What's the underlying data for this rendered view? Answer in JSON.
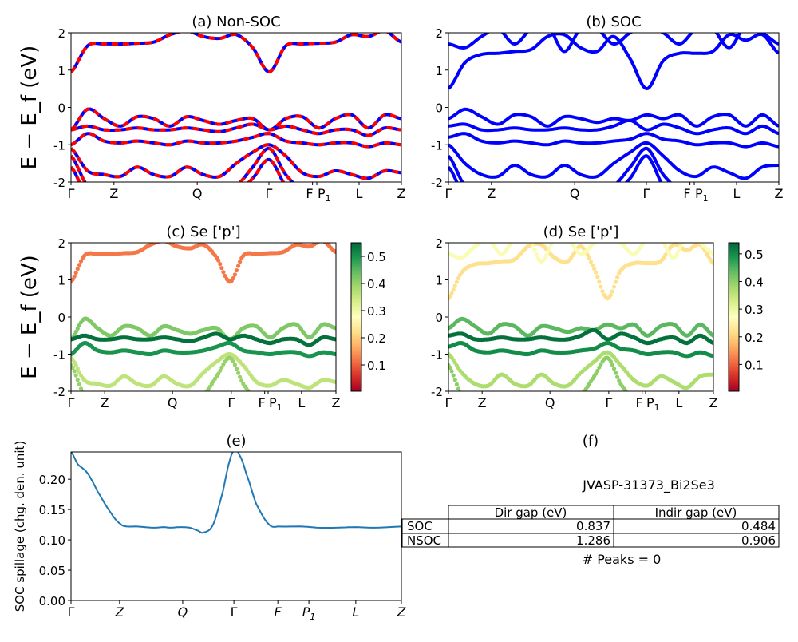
{
  "chart_data": [
    {
      "id": "a",
      "type": "line",
      "title": "(a) Non-SOC",
      "ylabel": "E − E_f (eV)",
      "ylim": [
        -2,
        2
      ],
      "yticks": [
        -2,
        -1,
        0,
        1,
        2
      ],
      "xlim": [
        0,
        1
      ],
      "xticks": [
        {
          "k": 0,
          "label": "Γ"
        },
        {
          "k": 0.13,
          "label": "Z"
        },
        {
          "k": 0.382,
          "label": "Q"
        },
        {
          "k": 0.599,
          "label": "Γ"
        },
        {
          "k": 0.731,
          "label": "F"
        },
        {
          "k": 0.744,
          "label": "P1"
        },
        {
          "k": 0.872,
          "label": "L"
        },
        {
          "k": 1,
          "label": "Z"
        }
      ],
      "colors": {
        "solid": "#0000ff",
        "dashed": "#ff0000"
      },
      "k": [
        0,
        0.05,
        0.1,
        0.15,
        0.2,
        0.25,
        0.3,
        0.35,
        0.4,
        0.45,
        0.5,
        0.55,
        0.6,
        0.65,
        0.7,
        0.75,
        0.8,
        0.85,
        0.9,
        0.95,
        1
      ],
      "bands": [
        [
          0.95,
          1.65,
          1.7,
          1.7,
          1.72,
          1.75,
          1.95,
          2.05,
          1.9,
          1.85,
          1.95,
          1.6,
          0.95,
          1.65,
          1.7,
          1.72,
          1.75,
          1.95,
          1.9,
          2.05,
          1.75
        ],
        [
          -0.6,
          -0.05,
          -0.3,
          -0.5,
          -0.25,
          -0.3,
          -0.5,
          -0.25,
          -0.35,
          -0.45,
          -0.35,
          -0.3,
          -0.6,
          -0.3,
          -0.25,
          -0.55,
          -0.3,
          -0.2,
          -0.55,
          -0.2,
          -0.3
        ],
        [
          -0.6,
          -0.5,
          -0.6,
          -0.6,
          -0.55,
          -0.6,
          -0.6,
          -0.55,
          -0.6,
          -0.65,
          -0.55,
          -0.45,
          -0.6,
          -0.5,
          -0.6,
          -0.7,
          -0.6,
          -0.6,
          -0.75,
          -0.55,
          -0.6
        ],
        [
          -1.0,
          -0.7,
          -0.9,
          -0.95,
          -0.9,
          -0.95,
          -1.0,
          -0.9,
          -0.95,
          -0.95,
          -0.9,
          -0.8,
          -0.7,
          -0.9,
          -0.95,
          -1.0,
          -0.95,
          -0.95,
          -1.05,
          -0.95,
          -1.0
        ],
        [
          -1.1,
          -1.7,
          -1.8,
          -1.85,
          -1.6,
          -1.8,
          -1.85,
          -1.6,
          -1.8,
          -1.85,
          -1.5,
          -1.2,
          -1.0,
          -1.3,
          -1.75,
          -1.85,
          -1.7,
          -1.8,
          -1.9,
          -1.7,
          -1.75
        ],
        [
          -1.3,
          -2.1,
          -2.2,
          -2.2,
          -2.2,
          -2.2,
          -2.2,
          -2.2,
          -2.2,
          -2.2,
          -2.1,
          -1.6,
          -1.1,
          -1.8,
          -2.2,
          -2.2,
          -2.2,
          -2.2,
          -2.2,
          -2.2,
          -2.2
        ],
        [
          -1.6,
          -2.4,
          -2.4,
          -2.4,
          -2.4,
          -2.4,
          -2.4,
          -2.4,
          -2.4,
          -2.4,
          -2.3,
          -1.9,
          -1.4,
          -2.1,
          -2.4,
          -2.4,
          -2.4,
          -2.4,
          -2.4,
          -2.4,
          -2.4
        ]
      ]
    },
    {
      "id": "b",
      "type": "line",
      "title": "(b) SOC",
      "ylim": [
        -2,
        2
      ],
      "yticks": [
        -2,
        -1,
        0,
        1,
        2
      ],
      "xlim": [
        0,
        1
      ],
      "xticks": [
        {
          "k": 0,
          "label": "Γ"
        },
        {
          "k": 0.13,
          "label": "Z"
        },
        {
          "k": 0.382,
          "label": "Q"
        },
        {
          "k": 0.599,
          "label": "Γ"
        },
        {
          "k": 0.731,
          "label": "F"
        },
        {
          "k": 0.744,
          "label": "P1"
        },
        {
          "k": 0.872,
          "label": "L"
        },
        {
          "k": 1,
          "label": "Z"
        }
      ],
      "colors": {
        "solid": "#0000ff"
      },
      "k": [
        0,
        0.05,
        0.1,
        0.15,
        0.2,
        0.25,
        0.3,
        0.35,
        0.4,
        0.45,
        0.5,
        0.55,
        0.6,
        0.65,
        0.7,
        0.75,
        0.8,
        0.85,
        0.9,
        0.95,
        1
      ],
      "bands": [
        [
          0.5,
          1.2,
          1.42,
          1.45,
          1.5,
          1.55,
          1.9,
          1.95,
          1.6,
          1.5,
          1.9,
          1.3,
          0.5,
          1.25,
          1.45,
          1.45,
          1.5,
          1.95,
          1.8,
          1.95,
          1.45
        ],
        [
          1.7,
          1.6,
          1.9,
          2.1,
          1.7,
          2.1,
          2.2,
          1.5,
          2.1,
          2.1,
          1.7,
          2.0,
          2.2,
          2.0,
          1.7,
          2.1,
          2.1,
          1.6,
          2.2,
          2.0,
          1.7
        ],
        [
          -0.3,
          -0.05,
          -0.25,
          -0.45,
          -0.2,
          -0.25,
          -0.5,
          -0.25,
          -0.3,
          -0.4,
          -0.3,
          -0.35,
          -0.2,
          -0.3,
          -0.2,
          -0.5,
          -0.25,
          -0.2,
          -0.5,
          -0.2,
          -0.5
        ],
        [
          -0.5,
          -0.45,
          -0.6,
          -0.6,
          -0.55,
          -0.6,
          -0.6,
          -0.55,
          -0.6,
          -0.6,
          -0.5,
          -0.35,
          -0.6,
          -0.45,
          -0.55,
          -0.7,
          -0.6,
          -0.55,
          -0.7,
          -0.5,
          -0.7
        ],
        [
          -0.8,
          -0.7,
          -0.9,
          -0.95,
          -0.9,
          -0.95,
          -1.0,
          -0.9,
          -0.95,
          -0.95,
          -0.9,
          -0.85,
          -0.7,
          -0.85,
          -0.9,
          -1.0,
          -0.95,
          -0.95,
          -1.05,
          -0.95,
          -1.05
        ],
        [
          -1.0,
          -1.5,
          -1.8,
          -1.85,
          -1.55,
          -1.8,
          -1.85,
          -1.55,
          -1.8,
          -1.85,
          -1.5,
          -1.2,
          -0.95,
          -1.3,
          -1.7,
          -1.85,
          -1.6,
          -1.75,
          -1.9,
          -1.6,
          -1.55
        ],
        [
          -1.3,
          -2.1,
          -2.2,
          -2.2,
          -2.2,
          -2.2,
          -2.2,
          -2.2,
          -2.2,
          -2.2,
          -2.1,
          -1.6,
          -1.1,
          -1.8,
          -2.2,
          -2.2,
          -2.2,
          -2.2,
          -2.2,
          -2.2,
          -2.2
        ],
        [
          -1.6,
          -2.4,
          -2.4,
          -2.4,
          -2.4,
          -2.4,
          -2.4,
          -2.4,
          -2.4,
          -2.4,
          -2.3,
          -1.9,
          -1.3,
          -2.1,
          -2.4,
          -2.4,
          -2.4,
          -2.4,
          -2.4,
          -2.4,
          -2.4
        ]
      ]
    },
    {
      "id": "c",
      "type": "scatter",
      "title": "(c)  Se ['p']",
      "ylabel": "E − E_f (eV)",
      "ylim": [
        -2,
        2
      ],
      "yticks": [
        -2,
        -1,
        0,
        1,
        2
      ],
      "xlim": [
        0,
        1
      ],
      "xticks": [
        {
          "k": 0,
          "label": "Γ"
        },
        {
          "k": 0.127,
          "label": "Z"
        },
        {
          "k": 0.383,
          "label": "Q"
        },
        {
          "k": 0.605,
          "label": "Γ"
        },
        {
          "k": 0.731,
          "label": "F"
        },
        {
          "k": 0.744,
          "label": "P1"
        },
        {
          "k": 0.87,
          "label": "L"
        },
        {
          "k": 1,
          "label": "Z"
        }
      ],
      "colorbar": {
        "colormap": "RdYlGn",
        "range": [
          0.003,
          0.55
        ],
        "ticks": [
          0.1,
          0.2,
          0.3,
          0.4,
          0.5
        ]
      },
      "k": [
        0,
        0.05,
        0.1,
        0.15,
        0.2,
        0.25,
        0.3,
        0.35,
        0.4,
        0.45,
        0.5,
        0.55,
        0.6,
        0.65,
        0.7,
        0.75,
        0.8,
        0.85,
        0.9,
        0.95,
        1
      ],
      "bands": [
        {
          "weight": 0.12,
          "e": [
            0.95,
            1.65,
            1.7,
            1.7,
            1.72,
            1.75,
            1.95,
            2.05,
            1.9,
            1.85,
            1.95,
            1.6,
            0.95,
            1.65,
            1.7,
            1.72,
            1.75,
            1.95,
            1.9,
            2.05,
            1.75
          ]
        },
        {
          "weight": 0.42,
          "e": [
            -0.6,
            -0.05,
            -0.3,
            -0.5,
            -0.25,
            -0.3,
            -0.5,
            -0.25,
            -0.35,
            -0.45,
            -0.35,
            -0.3,
            -0.6,
            -0.3,
            -0.25,
            -0.55,
            -0.3,
            -0.2,
            -0.55,
            -0.2,
            -0.3
          ]
        },
        {
          "weight": 0.54,
          "e": [
            -0.6,
            -0.5,
            -0.6,
            -0.6,
            -0.55,
            -0.6,
            -0.6,
            -0.55,
            -0.6,
            -0.65,
            -0.55,
            -0.45,
            -0.6,
            -0.5,
            -0.6,
            -0.7,
            -0.6,
            -0.6,
            -0.75,
            -0.55,
            -0.6
          ]
        },
        {
          "weight": 0.5,
          "e": [
            -1.0,
            -0.7,
            -0.9,
            -0.95,
            -0.9,
            -0.95,
            -1.0,
            -0.9,
            -0.95,
            -0.95,
            -0.9,
            -0.8,
            -0.7,
            -0.9,
            -0.95,
            -1.0,
            -0.95,
            -0.95,
            -1.05,
            -0.95,
            -1.0
          ]
        },
        {
          "weight": 0.36,
          "e": [
            -1.1,
            -1.7,
            -1.8,
            -1.85,
            -1.6,
            -1.8,
            -1.85,
            -1.6,
            -1.8,
            -1.85,
            -1.5,
            -1.2,
            -1.0,
            -1.3,
            -1.75,
            -1.85,
            -1.7,
            -1.8,
            -1.9,
            -1.7,
            -1.75
          ]
        },
        {
          "weight": 0.4,
          "e": [
            -1.3,
            -2.1,
            -2.2,
            -2.2,
            -2.2,
            -2.2,
            -2.2,
            -2.2,
            -2.2,
            -2.2,
            -2.1,
            -1.6,
            -1.1,
            -1.8,
            -2.2,
            -2.2,
            -2.2,
            -2.2,
            -2.2,
            -2.2,
            -2.2
          ]
        }
      ]
    },
    {
      "id": "d",
      "type": "scatter",
      "title": "(d) Se ['p']",
      "ylim": [
        -2,
        2
      ],
      "yticks": [
        -2,
        -1,
        0,
        1,
        2
      ],
      "xlim": [
        0,
        1
      ],
      "xticks": [
        {
          "k": 0,
          "label": "Γ"
        },
        {
          "k": 0.127,
          "label": "Z"
        },
        {
          "k": 0.383,
          "label": "Q"
        },
        {
          "k": 0.605,
          "label": "Γ"
        },
        {
          "k": 0.731,
          "label": "F"
        },
        {
          "k": 0.744,
          "label": "P1"
        },
        {
          "k": 0.87,
          "label": "L"
        },
        {
          "k": 1,
          "label": "Z"
        }
      ],
      "colorbar": {
        "colormap": "RdYlGn",
        "range": [
          0.003,
          0.54
        ],
        "ticks": [
          0.1,
          0.2,
          0.3,
          0.4,
          0.5
        ]
      },
      "k": [
        0,
        0.05,
        0.1,
        0.15,
        0.2,
        0.25,
        0.3,
        0.35,
        0.4,
        0.45,
        0.5,
        0.55,
        0.6,
        0.65,
        0.7,
        0.75,
        0.8,
        0.85,
        0.9,
        0.95,
        1
      ],
      "bands": [
        {
          "weight": 0.22,
          "e": [
            0.5,
            1.2,
            1.42,
            1.45,
            1.5,
            1.55,
            1.9,
            1.95,
            1.6,
            1.5,
            1.9,
            1.3,
            0.5,
            1.25,
            1.45,
            1.45,
            1.5,
            1.95,
            1.8,
            1.95,
            1.45
          ]
        },
        {
          "weight": 0.28,
          "e": [
            1.7,
            1.6,
            1.9,
            2.1,
            1.7,
            2.1,
            2.2,
            1.5,
            2.1,
            2.1,
            1.7,
            2.0,
            2.2,
            2.0,
            1.7,
            2.1,
            2.1,
            1.6,
            2.2,
            2.0,
            1.7
          ]
        },
        {
          "weight": 0.44,
          "e": [
            -0.3,
            -0.05,
            -0.25,
            -0.45,
            -0.2,
            -0.25,
            -0.5,
            -0.25,
            -0.3,
            -0.4,
            -0.3,
            -0.35,
            -0.2,
            -0.3,
            -0.2,
            -0.5,
            -0.25,
            -0.2,
            -0.5,
            -0.2,
            -0.5
          ]
        },
        {
          "weight": 0.53,
          "e": [
            -0.5,
            -0.45,
            -0.6,
            -0.6,
            -0.55,
            -0.6,
            -0.6,
            -0.55,
            -0.6,
            -0.6,
            -0.5,
            -0.35,
            -0.6,
            -0.45,
            -0.55,
            -0.7,
            -0.6,
            -0.55,
            -0.7,
            -0.5,
            -0.7
          ]
        },
        {
          "weight": 0.5,
          "e": [
            -0.8,
            -0.7,
            -0.9,
            -0.95,
            -0.9,
            -0.95,
            -1.0,
            -0.9,
            -0.95,
            -0.95,
            -0.9,
            -0.85,
            -0.7,
            -0.85,
            -0.9,
            -1.0,
            -0.95,
            -0.95,
            -1.05,
            -0.95,
            -1.05
          ]
        },
        {
          "weight": 0.37,
          "e": [
            -1.0,
            -1.5,
            -1.8,
            -1.85,
            -1.55,
            -1.8,
            -1.85,
            -1.55,
            -1.8,
            -1.85,
            -1.5,
            -1.2,
            -0.95,
            -1.3,
            -1.7,
            -1.85,
            -1.6,
            -1.75,
            -1.9,
            -1.6,
            -1.55
          ]
        },
        {
          "weight": 0.4,
          "e": [
            -1.3,
            -2.1,
            -2.2,
            -2.2,
            -2.2,
            -2.2,
            -2.2,
            -2.2,
            -2.2,
            -2.2,
            -2.1,
            -1.6,
            -1.1,
            -1.8,
            -2.2,
            -2.2,
            -2.2,
            -2.2,
            -2.2,
            -2.2,
            -2.2
          ]
        }
      ]
    },
    {
      "id": "e",
      "type": "line",
      "title": "(e)",
      "ylabel": "SOC spillage (chg. den. unit)",
      "ylim": [
        0,
        0.245
      ],
      "yticks": [
        0.0,
        0.05,
        0.1,
        0.15,
        0.2
      ],
      "xlim": [
        0,
        1
      ],
      "xticks": [
        {
          "k": 0,
          "label": "Γ"
        },
        {
          "k": 0.147,
          "label": "Z"
        },
        {
          "k": 0.338,
          "label": "Q"
        },
        {
          "k": 0.493,
          "label": "Γ"
        },
        {
          "k": 0.626,
          "label": "F"
        },
        {
          "k": 0.72,
          "label": "P1"
        },
        {
          "k": 0.862,
          "label": "L"
        },
        {
          "k": 1,
          "label": "Z"
        }
      ],
      "color": "#1f77b4",
      "x": [
        0,
        0.02,
        0.05,
        0.08,
        0.12,
        0.15,
        0.17,
        0.2,
        0.25,
        0.28,
        0.3,
        0.33,
        0.36,
        0.385,
        0.4,
        0.43,
        0.46,
        0.48,
        0.495,
        0.51,
        0.53,
        0.56,
        0.6,
        0.63,
        0.7,
        0.75,
        0.8,
        0.86,
        0.92,
        1
      ],
      "y": [
        0.245,
        0.225,
        0.21,
        0.18,
        0.145,
        0.126,
        0.122,
        0.122,
        0.12,
        0.121,
        0.12,
        0.121,
        0.12,
        0.115,
        0.112,
        0.125,
        0.18,
        0.23,
        0.248,
        0.24,
        0.21,
        0.16,
        0.125,
        0.122,
        0.122,
        0.12,
        0.12,
        0.121,
        0.12,
        0.122
      ]
    },
    {
      "id": "f",
      "type": "table",
      "title": "(f)",
      "subtitle": "JVASP-31373_Bi2Se3",
      "columns": [
        "",
        "Dir gap (eV)",
        "Indir gap (eV)"
      ],
      "rows": [
        [
          "SOC",
          "0.837",
          "0.484"
        ],
        [
          "NSOC",
          "1.286",
          "0.906"
        ]
      ],
      "footer": "# Peaks = 0"
    }
  ]
}
